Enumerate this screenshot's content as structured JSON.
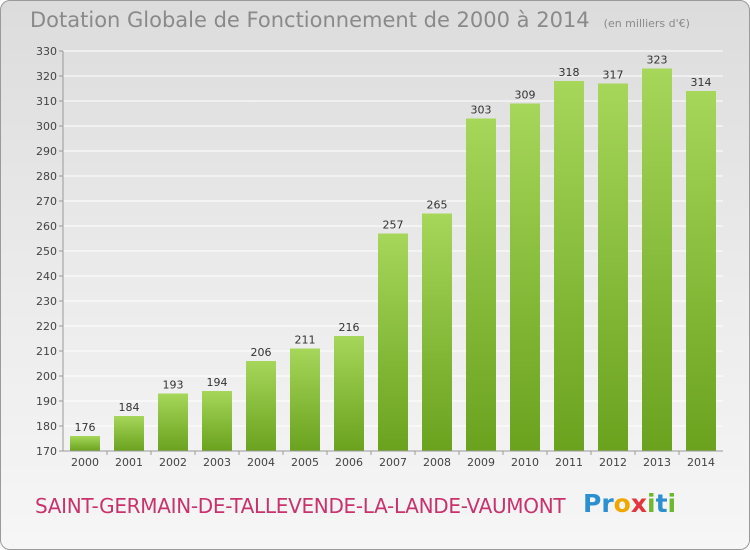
{
  "header": {
    "title": "Dotation Globale de Fonctionnement de 2000 à 2014",
    "unit": "(en milliers d'€)"
  },
  "footer": {
    "commune": "SAINT-GERMAIN-DE-TALLEVENDE-LA-LANDE-VAUMONT",
    "logo_letters": [
      "P",
      "r",
      "o",
      "x",
      "i",
      "t",
      "i"
    ],
    "logo_colors": [
      "#2b8fd0",
      "#2b8fd0",
      "#f0a800",
      "#e2363c",
      "#6fb72e",
      "#2b8fd0",
      "#6fb72e"
    ]
  },
  "colors": {
    "bar_top": "#a6d65a",
    "bar_bottom": "#6aa21e",
    "grid": "#ffffff",
    "axis_text": "#444444",
    "label_text": "#333333"
  },
  "chart_data": {
    "type": "bar",
    "title": "Dotation Globale de Fonctionnement de 2000 à 2014",
    "subtitle": "(en milliers d'€)",
    "categories": [
      "2000",
      "2001",
      "2002",
      "2003",
      "2004",
      "2005",
      "2006",
      "2007",
      "2008",
      "2009",
      "2010",
      "2011",
      "2012",
      "2013",
      "2014"
    ],
    "values": [
      176,
      184,
      193,
      194,
      206,
      211,
      216,
      257,
      265,
      303,
      309,
      318,
      317,
      323,
      314
    ],
    "ylim": [
      170,
      330
    ],
    "yticks": [
      170,
      180,
      190,
      200,
      210,
      220,
      230,
      240,
      250,
      260,
      270,
      280,
      290,
      300,
      310,
      320,
      330
    ],
    "grid": true,
    "legend": "none"
  }
}
